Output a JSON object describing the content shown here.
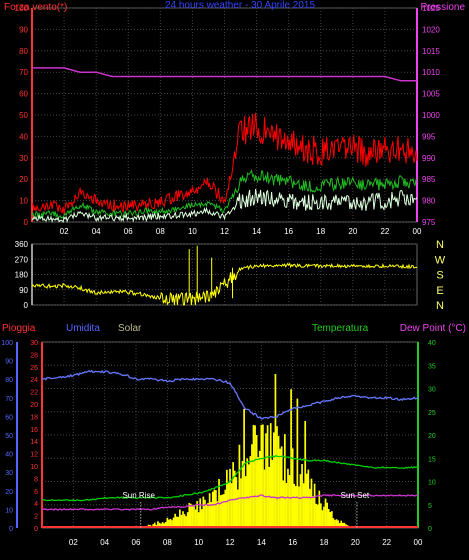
{
  "top_labels": {
    "left": "Forza vento(*)",
    "center": "24 hours weather - 30 Aprile 2015",
    "right": "Pressione"
  },
  "top_left_ticks": [
    "0",
    "10",
    "20",
    "30",
    "40",
    "50",
    "60",
    "70",
    "80",
    "90",
    "100"
  ],
  "top_right_ticks": [
    "975",
    "980",
    "985",
    "990",
    "995",
    "1000",
    "1005",
    "1010",
    "1015",
    "1020",
    "1025"
  ],
  "mid_left_ticks": [
    "0",
    "90",
    "180",
    "270",
    "360"
  ],
  "mid_right_labels": [
    "N",
    "W",
    "S",
    "E",
    "N"
  ],
  "x_ticks": [
    "02",
    "04",
    "06",
    "08",
    "10",
    "12",
    "14",
    "16",
    "18",
    "20",
    "22",
    "00"
  ],
  "bottom_labels": {
    "pioggia": "Pioggia",
    "umidita": "Umidita",
    "solar": "Solar",
    "temperatura": "Temperatura",
    "dewpoint": "Dew Point (°C)"
  },
  "bottom_hum_ticks": [
    "0",
    "10",
    "20",
    "30",
    "40",
    "50",
    "60",
    "70",
    "80",
    "90",
    "100"
  ],
  "bottom_rain_ticks": [
    "0",
    "2",
    "4",
    "6",
    "8",
    "10",
    "12",
    "14",
    "16",
    "18",
    "20",
    "22",
    "24",
    "26",
    "28",
    "30"
  ],
  "bottom_temp_ticks": [
    "0",
    "5",
    "10",
    "15",
    "20",
    "25",
    "30",
    "35",
    "40"
  ],
  "annotations": {
    "sunrise": "Sun Rise",
    "sunset": "Sun Set"
  },
  "colors": {
    "wind_gust": "#ff0000",
    "wind_avg": "#22bb22",
    "wind_min": "#ddffdd",
    "pressure": "#cc33cc",
    "direction": "#ffff00",
    "humidity": "#6677ff",
    "temperature": "#00cc00",
    "dewpoint": "#cc33cc",
    "solar": "#ffff00",
    "rain": "#ff3333",
    "grid": "#444444",
    "axis_red": "#ff3333",
    "axis_blue": "#5566ff",
    "axis_green": "#22cc22",
    "axis_magenta": "#ee44ee"
  },
  "chart_data": [
    {
      "type": "line",
      "title": "24 hours weather - 30 Aprile 2015",
      "xlabel": "",
      "ylabel": "Forza vento(*)",
      "x_hours": [
        0,
        1,
        2,
        3,
        4,
        5,
        6,
        7,
        8,
        9,
        10,
        11,
        12,
        13,
        14,
        15,
        16,
        17,
        18,
        19,
        20,
        21,
        22,
        23,
        24
      ],
      "ylim": [
        0,
        100
      ],
      "series": [
        {
          "name": "",
          "values": [
            7,
            8,
            6,
            14,
            10,
            8,
            7,
            8,
            9,
            12,
            14,
            18,
            10,
            42,
            45,
            40,
            38,
            34,
            33,
            34,
            35,
            32,
            33,
            35,
            30
          ]
        },
        {
          "name": "",
          "values": [
            3,
            4,
            3,
            8,
            5,
            4,
            4,
            5,
            5,
            6,
            8,
            9,
            5,
            19,
            22,
            20,
            19,
            17,
            17,
            18,
            18,
            17,
            18,
            19,
            17
          ]
        },
        {
          "name": "",
          "values": [
            2,
            2,
            1,
            4,
            2,
            2,
            2,
            2,
            3,
            3,
            4,
            5,
            2,
            10,
            12,
            11,
            10,
            9,
            9,
            10,
            10,
            9,
            10,
            11,
            9
          ]
        }
      ],
      "y2label": "Pressione",
      "y2lim": [
        975,
        1025
      ],
      "pressure_series": {
        "name": "Pressione",
        "values": [
          1011,
          1011,
          1011,
          1010,
          1010,
          1009,
          1009,
          1009,
          1009,
          1009,
          1009,
          1009,
          1009,
          1009,
          1009,
          1009,
          1009,
          1009,
          1009,
          1009,
          1009,
          1009,
          1009,
          1008,
          1008
        ]
      }
    },
    {
      "type": "line",
      "xlabel": "",
      "ylabel": "",
      "x_hours": [
        0,
        1,
        2,
        3,
        4,
        5,
        6,
        7,
        8,
        9,
        10,
        11,
        12,
        13,
        14,
        15,
        16,
        17,
        18,
        19,
        20,
        21,
        22,
        23,
        24
      ],
      "ylim": [
        0,
        360
      ],
      "series": [
        {
          "name": "",
          "values": [
            120,
            110,
            115,
            100,
            70,
            80,
            75,
            60,
            40,
            35,
            30,
            45,
            120,
            215,
            230,
            232,
            235,
            232,
            230,
            232,
            230,
            228,
            230,
            228,
            225
          ]
        }
      ]
    },
    {
      "type": "line",
      "xlabel": "",
      "ylabel": "",
      "x_hours": [
        0,
        1,
        2,
        3,
        4,
        5,
        6,
        7,
        8,
        9,
        10,
        11,
        12,
        13,
        14,
        15,
        16,
        17,
        18,
        19,
        20,
        21,
        22,
        23,
        24
      ],
      "humidity": {
        "name": "Umidita",
        "ylim": [
          0,
          100
        ],
        "values": [
          80,
          81,
          82,
          84,
          84,
          83,
          80,
          80,
          79,
          80,
          80,
          80,
          78,
          64,
          59,
          60,
          64,
          66,
          68,
          70,
          71,
          70,
          70,
          69,
          70
        ]
      },
      "temperature": {
        "name": "Temperatura",
        "ylim": [
          0,
          40
        ],
        "values": [
          6,
          6,
          6,
          6,
          6.5,
          6.5,
          6.5,
          6.5,
          6.5,
          7,
          7.5,
          8.5,
          10,
          14,
          15,
          15.5,
          15,
          14.5,
          14.5,
          14,
          13.5,
          13,
          13,
          13,
          13
        ]
      },
      "dewpoint": {
        "name": "Dew Point (°C)",
        "ylim": [
          0,
          40
        ],
        "values": [
          4,
          4,
          4,
          4,
          4,
          4,
          4,
          4,
          4.5,
          4.5,
          5,
          5,
          6,
          6.5,
          7,
          6.5,
          6.5,
          6.5,
          7,
          7,
          7,
          7,
          7,
          7,
          7
        ]
      },
      "solar": {
        "name": "Solar",
        "ylim": [
          0,
          100
        ],
        "values": [
          0,
          0,
          0,
          0,
          0,
          0,
          0,
          2,
          5,
          10,
          15,
          20,
          30,
          45,
          55,
          50,
          40,
          28,
          15,
          4,
          0,
          0,
          0,
          0,
          0
        ]
      },
      "rain": {
        "name": "Pioggia",
        "ylim": [
          0,
          30
        ],
        "values": [
          0,
          0,
          0,
          0,
          0,
          0,
          0,
          0,
          0,
          0,
          0,
          0,
          0,
          0,
          0,
          0,
          0,
          0,
          0,
          0,
          0,
          0,
          0,
          0,
          0
        ]
      }
    }
  ]
}
